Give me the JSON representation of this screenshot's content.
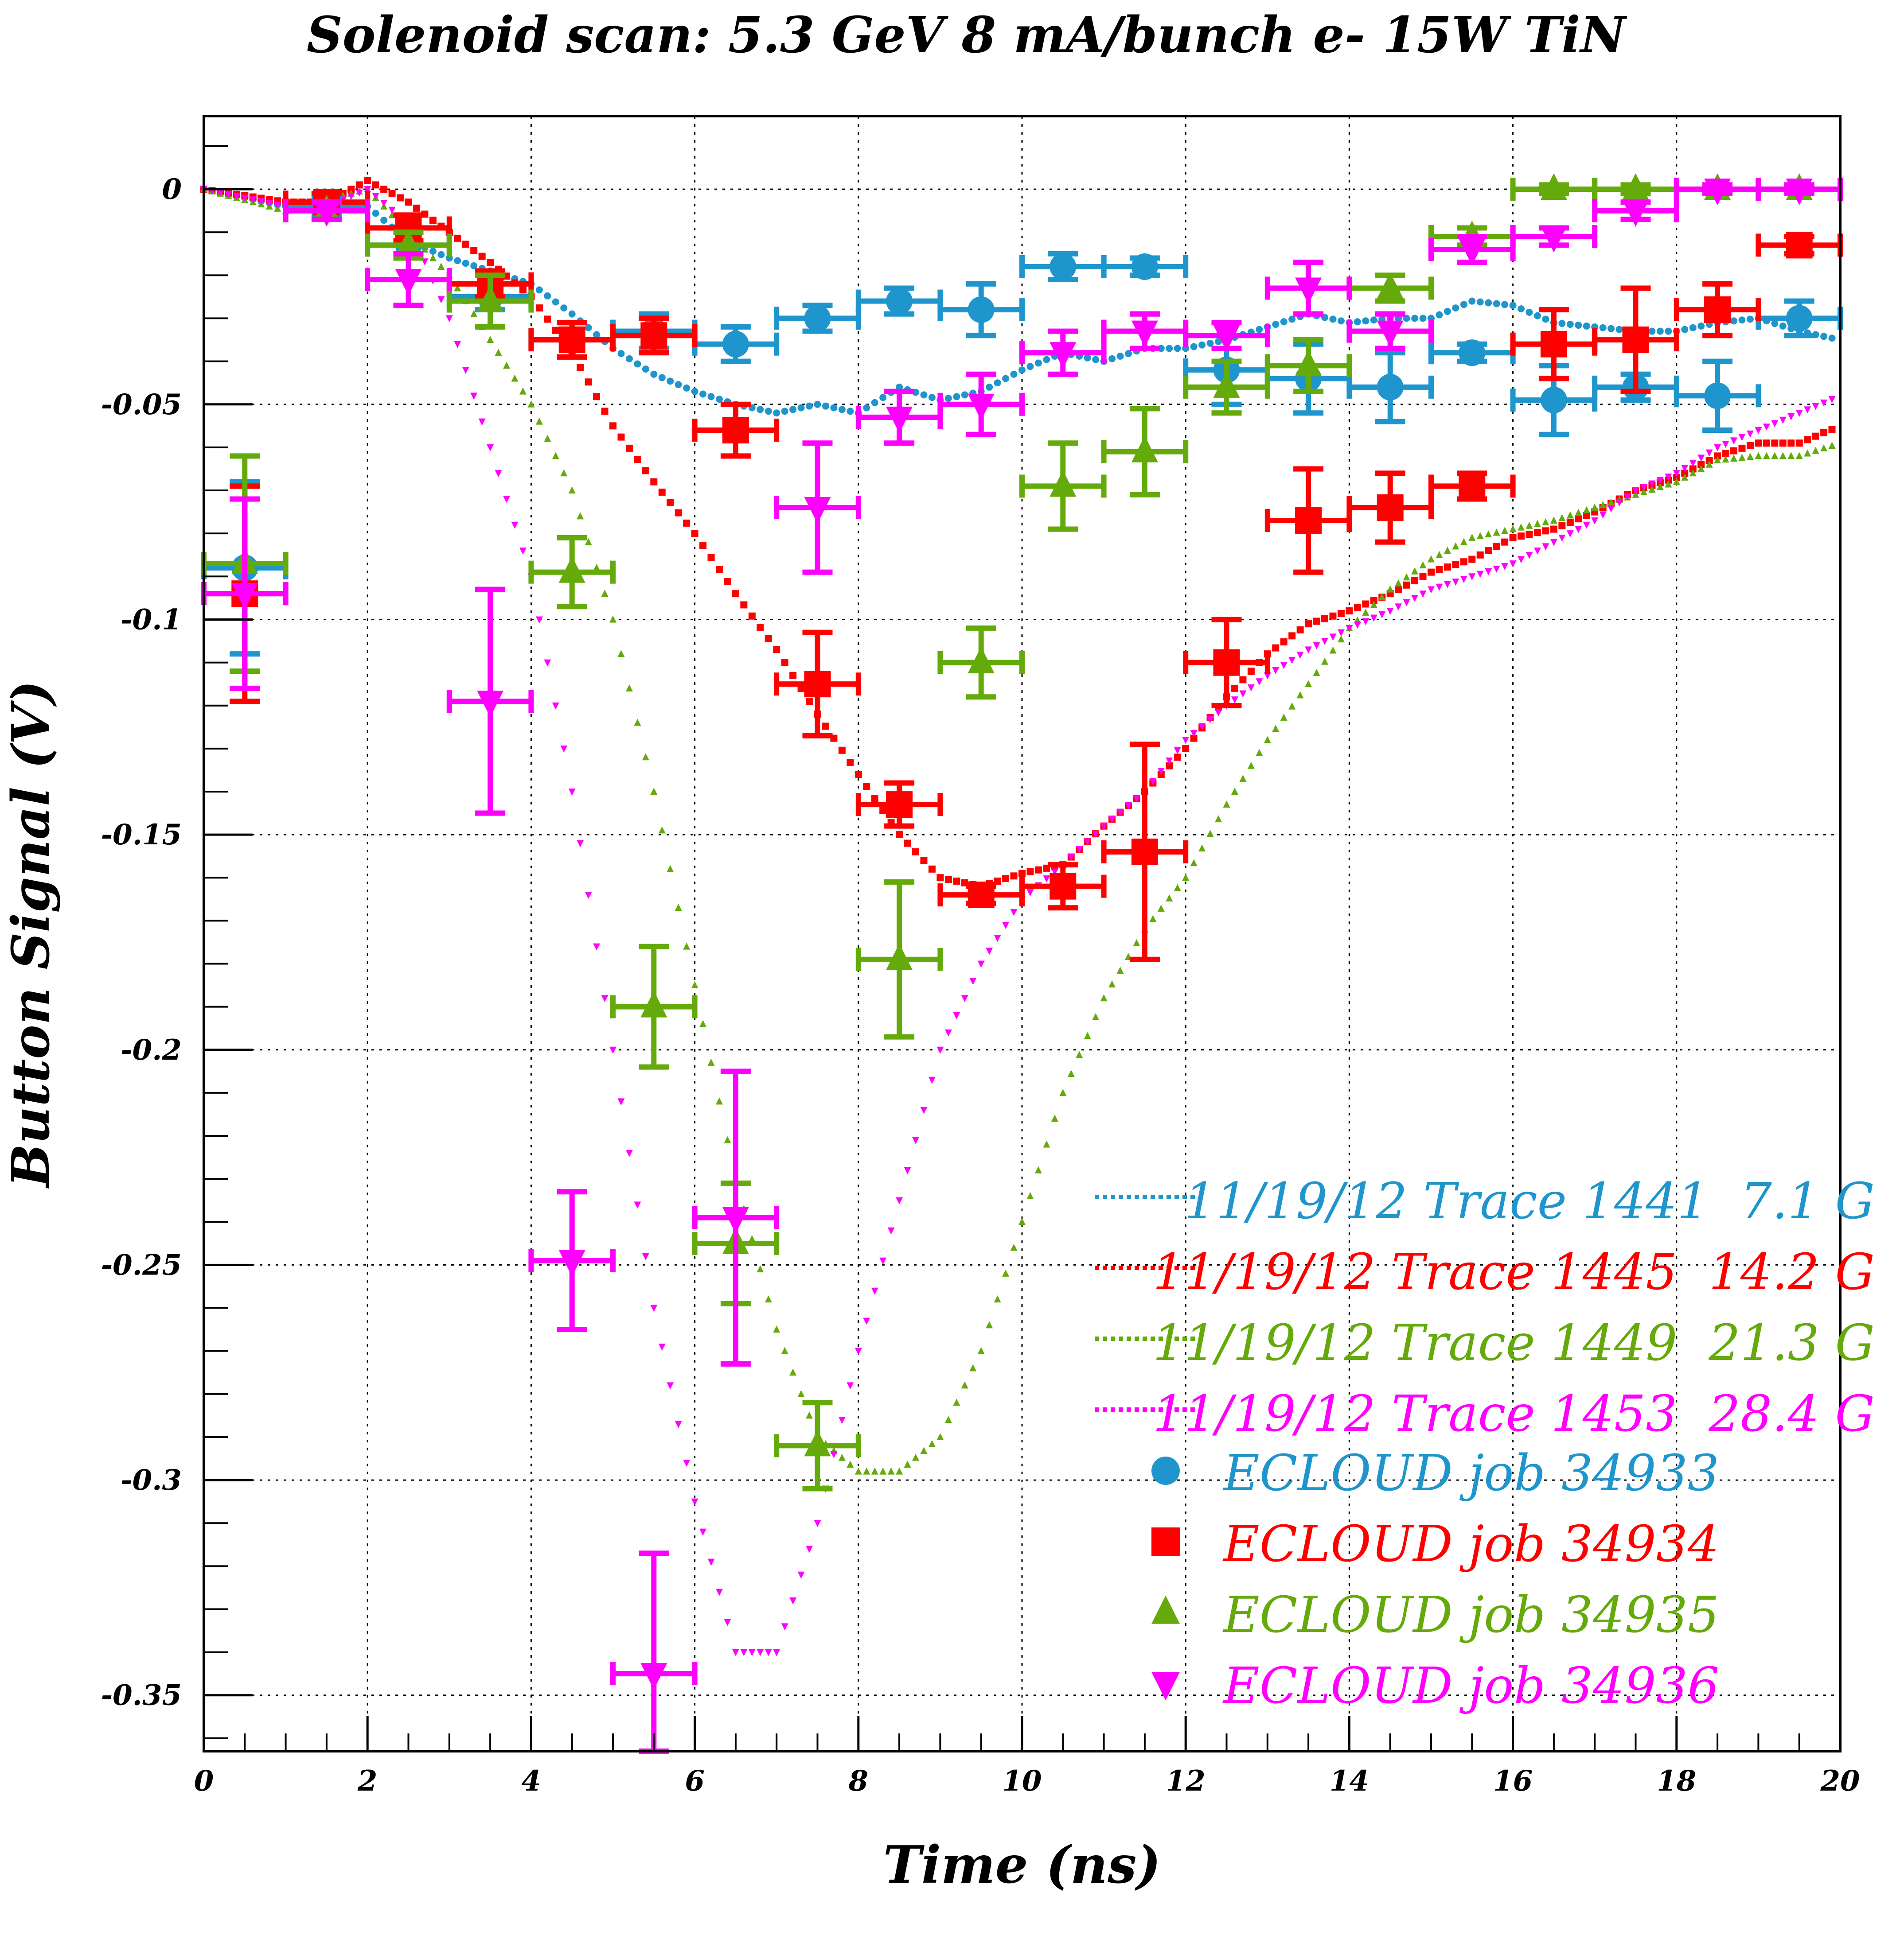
{
  "chart_data": {
    "type": "scatter",
    "title": "Solenoid scan: 5.3 GeV 8 mA/bunch e- 15W TiN",
    "xlabel": "Time (ns)",
    "ylabel": "Button Signal (V)",
    "xlim": [
      0,
      20
    ],
    "ylim": [
      -0.363,
      0.017
    ],
    "grid": true,
    "legend_position": "bottom-right",
    "x_ticks": [
      {
        "value": 0,
        "label": "0"
      },
      {
        "value": 2,
        "label": "2"
      },
      {
        "value": 4,
        "label": "4"
      },
      {
        "value": 6,
        "label": "6"
      },
      {
        "value": 8,
        "label": "8"
      },
      {
        "value": 10,
        "label": "10"
      },
      {
        "value": 12,
        "label": "12"
      },
      {
        "value": 14,
        "label": "14"
      },
      {
        "value": 16,
        "label": "16"
      },
      {
        "value": 18,
        "label": "18"
      },
      {
        "value": 20,
        "label": "20"
      }
    ],
    "y_ticks": [
      {
        "value": 0,
        "label": "0"
      },
      {
        "value": -0.05,
        "label": "-0.05"
      },
      {
        "value": -0.1,
        "label": "-0.1"
      },
      {
        "value": -0.15,
        "label": "-0.15"
      },
      {
        "value": -0.2,
        "label": "-0.2"
      },
      {
        "value": -0.25,
        "label": "-0.25"
      },
      {
        "value": -0.3,
        "label": "-0.3"
      },
      {
        "value": -0.35,
        "label": "-0.35"
      }
    ],
    "traces": [
      {
        "name": "11/19/12 Trace 1441  7.1 G",
        "color": "#1e96cd",
        "x": [
          0,
          1,
          2,
          2.5,
          3,
          4,
          4.5,
          5,
          5.5,
          6,
          6.5,
          7,
          7.5,
          8,
          8.5,
          9,
          9.5,
          10,
          10.5,
          11,
          11.5,
          12,
          12.5,
          13,
          13.5,
          14,
          14.5,
          15,
          15.5,
          16,
          16.5,
          17,
          17.5,
          18,
          18.5,
          19,
          19.5,
          20
        ],
        "y": [
          0,
          -0.004,
          -0.004,
          -0.012,
          -0.016,
          -0.022,
          -0.029,
          -0.037,
          -0.043,
          -0.047,
          -0.05,
          -0.052,
          -0.05,
          -0.052,
          -0.046,
          -0.049,
          -0.047,
          -0.042,
          -0.038,
          -0.04,
          -0.037,
          -0.037,
          -0.035,
          -0.032,
          -0.029,
          -0.031,
          -0.03,
          -0.03,
          -0.026,
          -0.027,
          -0.031,
          -0.032,
          -0.033,
          -0.033,
          -0.031,
          -0.03,
          -0.033,
          -0.035
        ]
      },
      {
        "name": "11/19/12 Trace 1445  14.2 G",
        "color": "#ff0000",
        "x": [
          0,
          1,
          1.5,
          2,
          2.5,
          3,
          3.5,
          4,
          4.5,
          5,
          5.5,
          6,
          6.5,
          7,
          7.5,
          8,
          8.5,
          9,
          9.5,
          10,
          10.5,
          11,
          11.5,
          12,
          12.5,
          13,
          13.5,
          14,
          14.5,
          15,
          15.5,
          16,
          16.5,
          17,
          17.5,
          18,
          18.5,
          19,
          19.5,
          20
        ],
        "y": [
          0,
          -0.003,
          -0.003,
          0.002,
          -0.003,
          -0.01,
          -0.017,
          -0.025,
          -0.038,
          -0.055,
          -0.068,
          -0.08,
          -0.094,
          -0.107,
          -0.122,
          -0.136,
          -0.15,
          -0.16,
          -0.162,
          -0.159,
          -0.157,
          -0.148,
          -0.14,
          -0.13,
          -0.118,
          -0.108,
          -0.101,
          -0.098,
          -0.094,
          -0.089,
          -0.086,
          -0.081,
          -0.079,
          -0.075,
          -0.07,
          -0.067,
          -0.062,
          -0.059,
          -0.059,
          -0.055
        ]
      },
      {
        "name": "11/19/12 Trace 1449  21.3 G",
        "color": "#64aa0a",
        "x": [
          0,
          1,
          2,
          2.5,
          3,
          3.5,
          4,
          4.5,
          5,
          5.5,
          6,
          6.5,
          7,
          7.5,
          8,
          8.5,
          9,
          9.5,
          10,
          10.5,
          11,
          11.5,
          12,
          12.5,
          13,
          13.5,
          14,
          14.5,
          15,
          15.5,
          16,
          16.5,
          17,
          17.5,
          18,
          18.5,
          19,
          19.5,
          20
        ],
        "y": [
          0,
          -0.005,
          0,
          -0.01,
          -0.02,
          -0.035,
          -0.05,
          -0.07,
          -0.1,
          -0.14,
          -0.185,
          -0.23,
          -0.265,
          -0.29,
          -0.298,
          -0.298,
          -0.29,
          -0.27,
          -0.24,
          -0.21,
          -0.188,
          -0.172,
          -0.16,
          -0.143,
          -0.128,
          -0.115,
          -0.102,
          -0.093,
          -0.086,
          -0.081,
          -0.079,
          -0.077,
          -0.074,
          -0.071,
          -0.068,
          -0.063,
          -0.062,
          -0.062,
          -0.059
        ]
      },
      {
        "name": "11/19/12 Trace 1453  28.4 G",
        "color": "#ff00ff",
        "x": [
          0,
          1,
          1.5,
          2,
          2.5,
          3,
          3.5,
          4,
          4.5,
          5,
          5.5,
          6,
          6.5,
          7,
          7.5,
          8,
          8.5,
          9,
          9.5,
          10,
          10.5,
          11,
          11.5,
          12,
          12.5,
          13,
          13.5,
          14,
          14.5,
          15,
          15.5,
          16,
          16.5,
          17,
          17.5,
          18,
          18.5,
          19,
          19.5,
          20
        ],
        "y": [
          0,
          -0.004,
          -0.004,
          0,
          -0.008,
          -0.03,
          -0.06,
          -0.09,
          -0.14,
          -0.2,
          -0.26,
          -0.305,
          -0.34,
          -0.34,
          -0.31,
          -0.27,
          -0.235,
          -0.2,
          -0.18,
          -0.165,
          -0.157,
          -0.148,
          -0.14,
          -0.128,
          -0.12,
          -0.113,
          -0.107,
          -0.102,
          -0.098,
          -0.093,
          -0.09,
          -0.087,
          -0.082,
          -0.077,
          -0.07,
          -0.066,
          -0.06,
          -0.056,
          -0.052,
          -0.048
        ]
      }
    ],
    "series": [
      {
        "name": "ECLOUD job 34933",
        "marker": "circle",
        "color": "#1e96cd",
        "x": [
          0.5,
          1.5,
          2.5,
          3.5,
          4.5,
          5.5,
          6.5,
          7.5,
          8.5,
          9.5,
          10.5,
          11.5,
          12.5,
          13.5,
          14.5,
          15.5,
          16.5,
          17.5,
          18.5,
          19.5
        ],
        "y": [
          -0.088,
          -0.004,
          -0.013,
          -0.025,
          -0.035,
          -0.033,
          -0.036,
          -0.03,
          -0.026,
          -0.028,
          -0.018,
          -0.018,
          -0.042,
          -0.044,
          -0.046,
          -0.038,
          -0.049,
          -0.046,
          -0.048,
          -0.03
        ],
        "yerr": [
          0.02,
          0.002,
          0.003,
          0.003,
          0.004,
          0.004,
          0.004,
          0.003,
          0.003,
          0.006,
          0.003,
          0.002,
          0.008,
          0.008,
          0.008,
          0.002,
          0.008,
          0.003,
          0.008,
          0.004
        ]
      },
      {
        "name": "ECLOUD job 34934",
        "marker": "square",
        "color": "#ff0000",
        "x": [
          0.5,
          1.5,
          2.5,
          3.5,
          4.5,
          5.5,
          6.5,
          7.5,
          8.5,
          9.5,
          10.5,
          11.5,
          12.5,
          13.5,
          14.5,
          15.5,
          16.5,
          17.5,
          18.5,
          19.5
        ],
        "y": [
          -0.094,
          -0.003,
          -0.009,
          -0.022,
          -0.035,
          -0.034,
          -0.056,
          -0.115,
          -0.143,
          -0.164,
          -0.162,
          -0.154,
          -0.11,
          -0.077,
          -0.074,
          -0.069,
          -0.036,
          -0.035,
          -0.028,
          -0.013
        ],
        "yerr": [
          0.025,
          0.002,
          0.003,
          0.003,
          0.004,
          0.004,
          0.006,
          0.012,
          0.005,
          0.002,
          0.005,
          0.025,
          0.01,
          0.012,
          0.008,
          0.003,
          0.008,
          0.012,
          0.006,
          0.002
        ]
      },
      {
        "name": "ECLOUD job 34935",
        "marker": "triangle-up",
        "color": "#64aa0a",
        "x": [
          0.5,
          1.5,
          2.5,
          3.5,
          4.5,
          5.5,
          6.5,
          7.5,
          8.5,
          9.5,
          10.5,
          11.5,
          12.5,
          13.5,
          14.5,
          15.5,
          16.5,
          17.5,
          18.5,
          19.5
        ],
        "y": [
          -0.087,
          -0.005,
          -0.013,
          -0.026,
          -0.089,
          -0.19,
          -0.245,
          -0.292,
          -0.179,
          -0.11,
          -0.069,
          -0.061,
          -0.046,
          -0.041,
          -0.023,
          -0.011,
          0,
          0,
          0,
          0
        ],
        "yerr": [
          0.025,
          0.002,
          0.003,
          0.006,
          0.008,
          0.014,
          0.014,
          0.01,
          0.018,
          0.008,
          0.01,
          0.01,
          0.006,
          0.006,
          0.003,
          0.002,
          0.001,
          0.001,
          0.001,
          0.001
        ]
      },
      {
        "name": "ECLOUD job 34936",
        "marker": "triangle-down",
        "color": "#ff00ff",
        "x": [
          0.5,
          1.5,
          2.5,
          3.5,
          4.5,
          5.5,
          6.5,
          7.5,
          8.5,
          9.5,
          10.5,
          11.5,
          12.5,
          13.5,
          14.5,
          15.5,
          16.5,
          17.5,
          18.5,
          19.5
        ],
        "y": [
          -0.094,
          -0.005,
          -0.021,
          -0.119,
          -0.249,
          -0.345,
          -0.239,
          -0.074,
          -0.053,
          -0.05,
          -0.038,
          -0.033,
          -0.034,
          -0.023,
          -0.033,
          -0.014,
          -0.011,
          -0.005,
          0,
          0
        ],
        "yerr": [
          0.022,
          0.002,
          0.006,
          0.026,
          0.016,
          0.028,
          0.034,
          0.015,
          0.006,
          0.007,
          0.005,
          0.004,
          0.003,
          0.006,
          0.004,
          0.003,
          0.002,
          0.002,
          0.001,
          0.001
        ]
      }
    ]
  }
}
